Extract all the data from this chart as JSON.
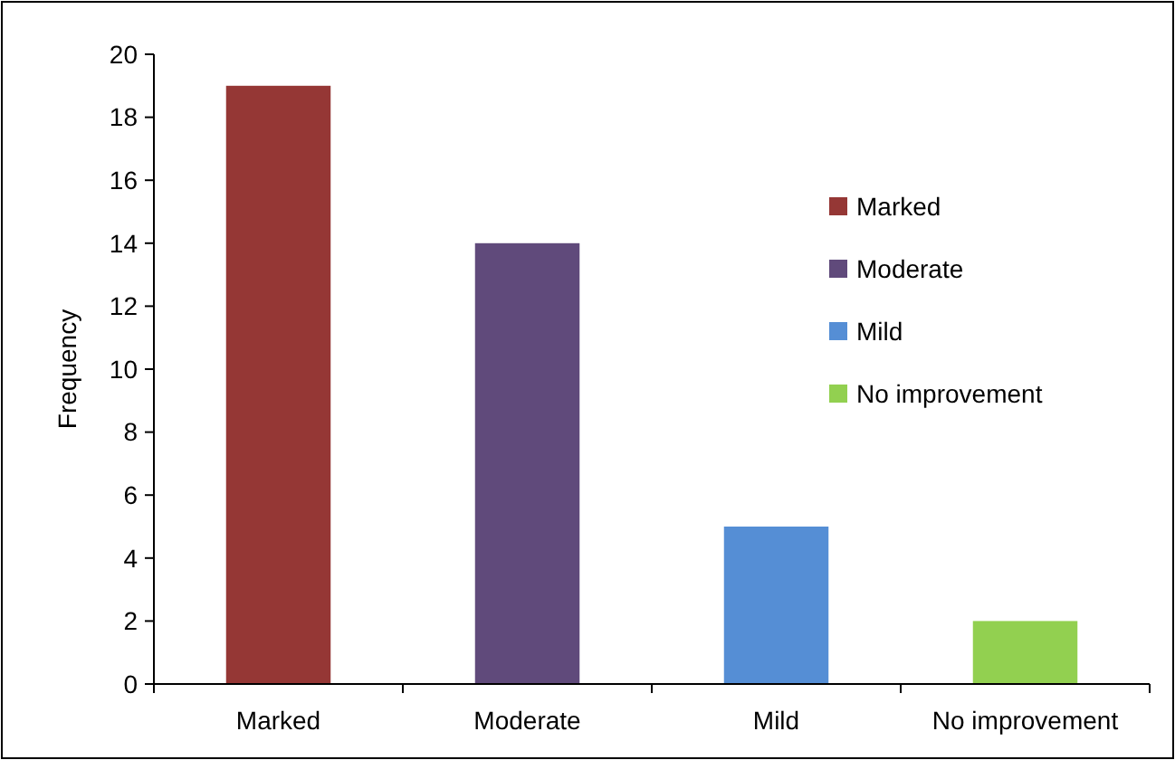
{
  "chart_data": {
    "type": "bar",
    "ylabel": "Frequency",
    "categories": [
      "Marked",
      "Moderate",
      "Mild",
      "No improvement"
    ],
    "series": [
      {
        "name": "Marked",
        "color": "#953735",
        "values": [
          19,
          null,
          null,
          null
        ]
      },
      {
        "name": "Moderate",
        "color": "#604a7b",
        "values": [
          null,
          14,
          null,
          null
        ]
      },
      {
        "name": "Mild",
        "color": "#558ed5",
        "values": [
          null,
          null,
          5,
          null
        ]
      },
      {
        "name": "No improvement",
        "color": "#92d050",
        "values": [
          null,
          null,
          null,
          2
        ]
      }
    ],
    "ylim": [
      0,
      20
    ],
    "yticks": [
      0,
      2,
      4,
      6,
      8,
      10,
      12,
      14,
      16,
      18,
      20
    ],
    "legend": "right"
  }
}
